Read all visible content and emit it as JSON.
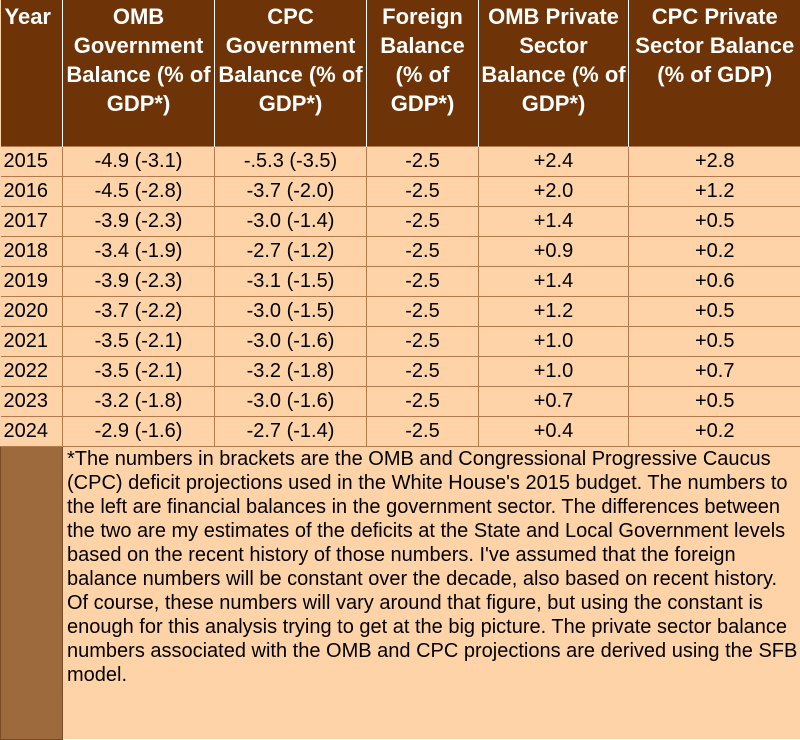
{
  "headers": {
    "year": "Year",
    "omb_gov": "OMB Government Balance (% of GDP*)",
    "cpc_gov": "CPC Government Balance (% of GDP*)",
    "foreign": "Foreign Balance (% of GDP*)",
    "omb_private": "OMB Private Sector Balance (% of GDP*)",
    "cpc_private": "CPC Private Sector Balance (% of GDP)"
  },
  "rows": [
    {
      "year": "2015",
      "omb_gov": "-4.9 (-3.1)",
      "cpc_gov": "-.5.3 (-3.5)",
      "foreign": "-2.5",
      "omb_private": "+2.4",
      "cpc_private": "+2.8"
    },
    {
      "year": "2016",
      "omb_gov": "-4.5 (-2.8)",
      "cpc_gov": "-3.7 (-2.0)",
      "foreign": "-2.5",
      "omb_private": "+2.0",
      "cpc_private": "+1.2"
    },
    {
      "year": "2017",
      "omb_gov": "-3.9 (-2.3)",
      "cpc_gov": "-3.0 (-1.4)",
      "foreign": "-2.5",
      "omb_private": "+1.4",
      "cpc_private": "+0.5"
    },
    {
      "year": "2018",
      "omb_gov": "-3.4 (-1.9)",
      "cpc_gov": "-2.7 (-1.2)",
      "foreign": "-2.5",
      "omb_private": "+0.9",
      "cpc_private": "+0.2"
    },
    {
      "year": "2019",
      "omb_gov": "-3.9 (-2.3)",
      "cpc_gov": "-3.1 (-1.5)",
      "foreign": "-2.5",
      "omb_private": "+1.4",
      "cpc_private": "+0.6"
    },
    {
      "year": "2020",
      "omb_gov": "-3.7 (-2.2)",
      "cpc_gov": "-3.0 (-1.5)",
      "foreign": "-2.5",
      "omb_private": "+1.2",
      "cpc_private": "+0.5"
    },
    {
      "year": "2021",
      "omb_gov": "-3.5 (-2.1)",
      "cpc_gov": "-3.0 (-1.6)",
      "foreign": "-2.5",
      "omb_private": "+1.0",
      "cpc_private": "+0.5"
    },
    {
      "year": "2022",
      "omb_gov": "-3.5 (-2.1)",
      "cpc_gov": "-3.2 (-1.8)",
      "foreign": "-2.5",
      "omb_private": "+1.0",
      "cpc_private": "+0.7"
    },
    {
      "year": "2023",
      "omb_gov": "-3.2 (-1.8)",
      "cpc_gov": "-3.0 (-1.6)",
      "foreign": "-2.5",
      "omb_private": "+0.7",
      "cpc_private": "+0.5"
    },
    {
      "year": "2024",
      "omb_gov": "-2.9 (-1.6)",
      "cpc_gov": "-2.7 (-1.4)",
      "foreign": "-2.5",
      "omb_private": "+0.4",
      "cpc_private": "+0.2"
    }
  ],
  "footnote": "*The numbers in brackets are the OMB and Congressional Progressive Caucus (CPC) deficit projections used in the White House's 2015 budget. The numbers to the left are financial balances in the government sector. The differences between the two are my estimates of the deficits at the State and Local Government levels based on the recent history of those numbers. I've assumed that the foreign balance numbers will be constant over the decade, also based on recent history. Of course, these numbers will vary around that figure, but using the constant is enough for this analysis trying to get at the big picture. The private sector balance numbers associated with the OMB and CPC projections are derived using the SFB model.",
  "colors": {
    "header_bg": "#6e3306",
    "body_bg": "#fed3a8",
    "note_left_bg": "#9c6a3c"
  }
}
